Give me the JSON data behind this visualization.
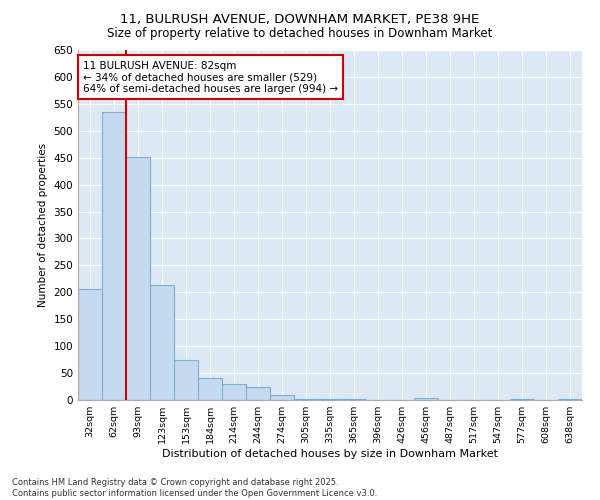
{
  "title_line1": "11, BULRUSH AVENUE, DOWNHAM MARKET, PE38 9HE",
  "title_line2": "Size of property relative to detached houses in Downham Market",
  "xlabel": "Distribution of detached houses by size in Downham Market",
  "ylabel": "Number of detached properties",
  "categories": [
    "32sqm",
    "62sqm",
    "93sqm",
    "123sqm",
    "153sqm",
    "184sqm",
    "214sqm",
    "244sqm",
    "274sqm",
    "305sqm",
    "335sqm",
    "365sqm",
    "396sqm",
    "426sqm",
    "456sqm",
    "487sqm",
    "517sqm",
    "547sqm",
    "577sqm",
    "608sqm",
    "638sqm"
  ],
  "values": [
    207,
    534,
    452,
    213,
    75,
    40,
    30,
    25,
    10,
    2,
    2,
    1,
    0,
    0,
    3,
    0,
    0,
    0,
    2,
    0,
    2
  ],
  "bar_color": "#c5d9ef",
  "bar_edge_color": "#7bafd4",
  "background_color": "#dce9f5",
  "grid_color": "#ffffff",
  "vline_color": "#cc0000",
  "annotation_text": "11 BULRUSH AVENUE: 82sqm\n← 34% of detached houses are smaller (529)\n64% of semi-detached houses are larger (994) →",
  "annotation_box_color": "#cc0000",
  "footer_text": "Contains HM Land Registry data © Crown copyright and database right 2025.\nContains public sector information licensed under the Open Government Licence v3.0.",
  "ylim": [
    0,
    650
  ],
  "yticks": [
    0,
    50,
    100,
    150,
    200,
    250,
    300,
    350,
    400,
    450,
    500,
    550,
    600,
    650
  ]
}
